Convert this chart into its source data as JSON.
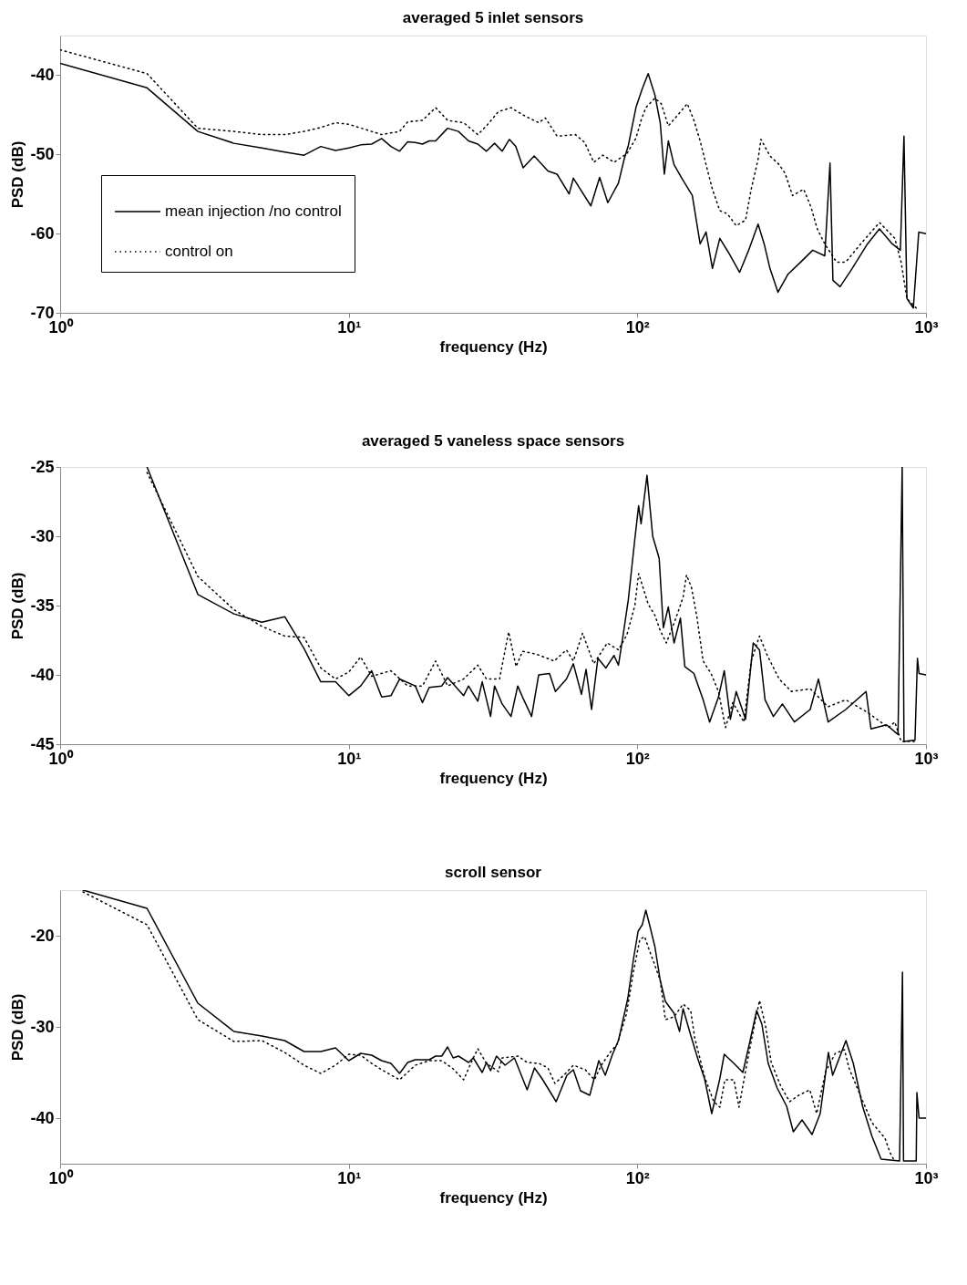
{
  "chart_data": [
    {
      "type": "line",
      "title": "averaged 5 inlet sensors",
      "xlabel": "frequency (Hz)",
      "ylabel": "PSD (dB)",
      "log": "x",
      "xlim": [
        1,
        1000
      ],
      "xticks": [
        {
          "value": 1,
          "label": "10⁰"
        },
        {
          "value": 10,
          "label": "10¹"
        },
        {
          "value": 100,
          "label": "10²"
        },
        {
          "value": 1000,
          "label": "10³"
        }
      ],
      "ylim": [
        -70,
        -35
      ],
      "yticks": [
        -70,
        -60,
        -50,
        -40
      ],
      "grid": false,
      "legend": "bottom left",
      "series": [
        {
          "name": "mean injection /no control",
          "color": "#000000",
          "line_style": "solid",
          "x": [
            1,
            2,
            3,
            4,
            5,
            6,
            7,
            8,
            9,
            10,
            11,
            12,
            13,
            14,
            15,
            16,
            17,
            18,
            19,
            20,
            22,
            24,
            26,
            28,
            30,
            32,
            34,
            36,
            37.9,
            40.2,
            43.9,
            49,
            52.7,
            58,
            60,
            69,
            74,
            79,
            86,
            90,
            93,
            99,
            104,
            109,
            115,
            120,
            124,
            128,
            134,
            143,
            155,
            165,
            173,
            182,
            193,
            207,
            226,
            243,
            262,
            275,
            288,
            307,
            333,
            368,
            405,
            446,
            465,
            476,
            504,
            555,
            627,
            690,
            764,
            815,
            839,
            859,
            904,
            944,
            1000
          ],
          "values": [
            -38.5,
            -41.6,
            -47.1,
            -48.6,
            -49.2,
            -49.7,
            -50.1,
            -49.0,
            -49.5,
            -49.2,
            -48.8,
            -48.7,
            -48.0,
            -49.0,
            -49.6,
            -48.4,
            -48.5,
            -48.7,
            -48.3,
            -48.3,
            -46.7,
            -47.1,
            -48.3,
            -48.7,
            -49.6,
            -48.6,
            -49.6,
            -48.1,
            -49.0,
            -51.7,
            -50.2,
            -52.1,
            -52.5,
            -55.0,
            -53.0,
            -56.5,
            -52.9,
            -56.1,
            -53.6,
            -50.6,
            -48.9,
            -44.0,
            -41.7,
            -39.8,
            -42.5,
            -46.0,
            -52.5,
            -48.3,
            -51.3,
            -53.1,
            -55.2,
            -61.3,
            -59.8,
            -64.4,
            -60.6,
            -62.4,
            -64.9,
            -62.1,
            -58.8,
            -61.3,
            -64.4,
            -67.4,
            -65.1,
            -63.6,
            -62.1,
            -62.8,
            -51.1,
            -65.9,
            -66.7,
            -64.4,
            -61.3,
            -59.4,
            -61.3,
            -62.1,
            -47.7,
            -68.2,
            -69.4,
            -59.8,
            -60.0
          ]
        },
        {
          "name": "control on",
          "color": "#000000",
          "line_style": "dotted",
          "x": [
            1,
            2,
            3,
            4,
            5,
            6,
            7,
            8,
            9,
            10,
            12,
            13,
            15,
            16,
            18,
            20,
            22,
            25,
            28,
            30,
            33,
            36.5,
            40,
            45.5,
            48,
            52.7,
            61,
            65.7,
            70.6,
            76,
            83,
            92,
            99,
            103,
            107,
            115,
            121,
            128,
            136,
            149,
            157,
            165,
            173,
            182,
            193,
            205,
            220,
            237,
            248,
            262,
            268,
            288,
            310,
            325,
            345,
            377,
            400,
            420,
            446,
            490,
            527,
            594,
            690,
            780,
            820,
            859,
            925
          ],
          "values": [
            -36.8,
            -39.8,
            -46.7,
            -47.1,
            -47.5,
            -47.5,
            -47.1,
            -46.6,
            -46.0,
            -46.2,
            -47.1,
            -47.5,
            -47.1,
            -45.9,
            -45.7,
            -44.1,
            -45.7,
            -46.0,
            -47.5,
            -46.4,
            -44.6,
            -44.1,
            -45.0,
            -46.0,
            -45.4,
            -47.7,
            -47.5,
            -48.5,
            -51.0,
            -50.1,
            -51.0,
            -49.9,
            -47.9,
            -45.7,
            -44.1,
            -42.9,
            -43.6,
            -46.4,
            -45.3,
            -43.6,
            -45.7,
            -48.3,
            -51.3,
            -54.4,
            -57.1,
            -57.5,
            -59.0,
            -58.3,
            -54.4,
            -50.6,
            -48.1,
            -50.2,
            -51.3,
            -52.4,
            -55.2,
            -54.4,
            -56.7,
            -59.4,
            -61.3,
            -63.6,
            -63.6,
            -61.3,
            -58.6,
            -60.6,
            -63.6,
            -68.2,
            -69.4
          ]
        }
      ]
    },
    {
      "type": "line",
      "title": "averaged 5 vaneless space sensors",
      "xlabel": "frequency (Hz)",
      "ylabel": "PSD (dB)",
      "log": "x",
      "xlim": [
        1,
        1000
      ],
      "xticks": [
        {
          "value": 1,
          "label": "10⁰"
        },
        {
          "value": 10,
          "label": "10¹"
        },
        {
          "value": 100,
          "label": "10²"
        },
        {
          "value": 1000,
          "label": "10³"
        }
      ],
      "ylim": [
        -45,
        -25
      ],
      "yticks": [
        -45,
        -40,
        -35,
        -30,
        -25
      ],
      "grid": false,
      "series": [
        {
          "color": "#000000",
          "line_style": "solid",
          "x": [
            2,
            3,
            4,
            5,
            6,
            7,
            8,
            9,
            10,
            11,
            12,
            13,
            14,
            15,
            17,
            18,
            19,
            21,
            22,
            25,
            26,
            28,
            29,
            31,
            32,
            34,
            36.5,
            38.5,
            40,
            43,
            45.5,
            49.6,
            52,
            56.8,
            60,
            64,
            66.4,
            69.4,
            73,
            77.8,
            83,
            86,
            89,
            93,
            98,
            101,
            103,
            108,
            113,
            119,
            123,
            128,
            134,
            141,
            146,
            157,
            169,
            178,
            191,
            200,
            210,
            220,
            237,
            252,
            265,
            277,
            296,
            318,
            350,
            397,
            424,
            458,
            527,
            620,
            645,
            730,
            800,
            827,
            839,
            916,
            934,
            946,
            1000
          ],
          "values": [
            -25.0,
            -34.2,
            -35.6,
            -36.2,
            -35.8,
            -38.1,
            -40.5,
            -40.5,
            -41.5,
            -40.8,
            -39.7,
            -41.6,
            -41.5,
            -40.3,
            -40.8,
            -42.0,
            -40.9,
            -40.8,
            -40.2,
            -41.5,
            -40.8,
            -41.9,
            -40.5,
            -43.0,
            -40.8,
            -42.1,
            -43.0,
            -40.8,
            -41.6,
            -43.0,
            -40.0,
            -39.9,
            -41.2,
            -40.3,
            -39.2,
            -41.4,
            -39.6,
            -42.5,
            -38.8,
            -39.5,
            -38.6,
            -39.3,
            -37.3,
            -34.6,
            -30.2,
            -27.8,
            -29.1,
            -25.6,
            -30.0,
            -31.6,
            -36.6,
            -35.1,
            -37.7,
            -35.9,
            -39.4,
            -39.9,
            -41.8,
            -43.4,
            -41.6,
            -39.7,
            -43.2,
            -41.2,
            -43.2,
            -37.7,
            -38.2,
            -41.8,
            -43.0,
            -42.1,
            -43.4,
            -42.5,
            -40.3,
            -43.4,
            -42.5,
            -41.2,
            -43.9,
            -43.6,
            -44.3,
            -25.0,
            -44.8,
            -44.7,
            -38.8,
            -39.9,
            -40.0
          ]
        },
        {
          "color": "#000000",
          "line_style": "dotted",
          "x": [
            2,
            3,
            4,
            5,
            6,
            7,
            8,
            9,
            10,
            11,
            12,
            14,
            16,
            18,
            20,
            22,
            25,
            28,
            30,
            33.3,
            35.8,
            38,
            40,
            44.6,
            51.5,
            56.8,
            60,
            64.6,
            70.6,
            78.6,
            86,
            92,
            98,
            101,
            105,
            109,
            115,
            120,
            126,
            136,
            144,
            148,
            154,
            161,
            169,
            180,
            191,
            202,
            214,
            234,
            248,
            265,
            282,
            310,
            342,
            397,
            458,
            527,
            627,
            740,
            780,
            820,
            916
          ],
          "values": [
            -25.4,
            -32.9,
            -35.3,
            -36.5,
            -37.2,
            -37.3,
            -39.5,
            -40.3,
            -39.8,
            -38.7,
            -40.1,
            -39.7,
            -40.8,
            -40.8,
            -39.0,
            -40.8,
            -40.3,
            -39.3,
            -40.3,
            -40.3,
            -36.9,
            -39.4,
            -38.3,
            -38.5,
            -39.0,
            -38.2,
            -39.0,
            -37.0,
            -39.2,
            -37.7,
            -38.2,
            -37.1,
            -35.0,
            -32.7,
            -33.8,
            -34.9,
            -35.7,
            -36.8,
            -37.7,
            -35.9,
            -34.4,
            -32.8,
            -33.7,
            -35.9,
            -39.0,
            -39.9,
            -41.2,
            -43.8,
            -42.0,
            -43.4,
            -39.0,
            -37.2,
            -38.6,
            -40.3,
            -41.2,
            -41.0,
            -42.3,
            -41.8,
            -42.7,
            -43.8,
            -43.4,
            -44.8,
            -44.8
          ]
        }
      ]
    },
    {
      "type": "line",
      "title": "scroll sensor",
      "xlabel": "frequency (Hz)",
      "ylabel": "PSD (dB)",
      "log": "x",
      "xlim": [
        1,
        1000
      ],
      "xticks": [
        {
          "value": 1,
          "label": "10⁰"
        },
        {
          "value": 10,
          "label": "10¹"
        },
        {
          "value": 100,
          "label": "10²"
        },
        {
          "value": 1000,
          "label": "10³"
        }
      ],
      "ylim": [
        -45,
        -15
      ],
      "yticks": [
        -40,
        -30,
        -20
      ],
      "grid": false,
      "series": [
        {
          "color": "#000000",
          "line_style": "solid",
          "x": [
            1.2,
            2,
            3,
            4,
            5,
            6,
            7,
            8,
            9,
            10,
            11,
            12,
            13,
            14,
            15,
            16,
            17,
            19,
            20,
            21,
            22,
            23,
            24,
            26,
            27,
            29,
            30,
            31,
            32.5,
            34.8,
            37.5,
            41.5,
            44,
            46.8,
            52.3,
            57,
            60,
            63.5,
            68.4,
            73.5,
            77.4,
            82,
            86,
            92.6,
            97,
            100.6,
            104,
            107,
            111,
            115,
            120,
            125,
            134,
            140,
            144,
            153,
            162,
            171,
            181,
            193,
            200,
            216,
            232,
            245,
            259,
            270,
            284,
            305,
            329,
            347,
            372,
            403,
            430,
            459,
            475,
            528,
            560,
            603,
            650,
            699,
            810,
            829,
            836,
            925,
            930,
            946,
            1000
          ],
          "values": [
            -15.0,
            -17.0,
            -27.4,
            -30.5,
            -31.0,
            -31.5,
            -32.7,
            -32.7,
            -32.3,
            -33.7,
            -32.9,
            -33.1,
            -33.7,
            -34.0,
            -35.1,
            -33.9,
            -33.6,
            -33.6,
            -33.2,
            -33.2,
            -32.2,
            -33.4,
            -33.2,
            -33.9,
            -33.4,
            -35.0,
            -33.9,
            -34.8,
            -33.2,
            -34.2,
            -33.4,
            -36.9,
            -34.5,
            -35.7,
            -38.2,
            -35.3,
            -34.7,
            -37.0,
            -37.5,
            -33.7,
            -35.3,
            -33.0,
            -31.5,
            -26.9,
            -22.5,
            -19.5,
            -18.8,
            -17.2,
            -19.2,
            -21.2,
            -24.9,
            -27.2,
            -28.5,
            -30.5,
            -28.0,
            -30.9,
            -33.5,
            -35.7,
            -39.5,
            -35.7,
            -33.0,
            -34.0,
            -35.0,
            -31.7,
            -28.2,
            -29.7,
            -34.0,
            -36.7,
            -38.7,
            -41.5,
            -40.2,
            -41.8,
            -39.5,
            -32.8,
            -35.3,
            -31.5,
            -34.0,
            -38.7,
            -42.0,
            -44.5,
            -44.7,
            -24.0,
            -44.7,
            -44.7,
            -37.2,
            -40.0,
            -40.0
          ]
        },
        {
          "color": "#000000",
          "line_style": "dotted",
          "x": [
            1.2,
            2,
            3,
            4,
            5,
            6,
            7,
            8,
            9,
            10,
            11,
            12,
            13,
            15,
            17,
            19,
            21,
            23,
            25,
            27,
            28,
            30,
            33,
            34,
            38.6,
            41.5,
            45.6,
            49,
            51.8,
            56,
            60,
            66,
            71,
            75,
            80,
            85,
            91.6,
            97,
            102,
            106,
            110,
            114,
            120,
            125,
            134,
            144,
            153,
            158,
            171,
            184,
            193,
            201,
            216,
            225,
            239,
            254,
            265,
            278,
            291,
            314,
            337,
            362,
            396,
            418,
            449,
            485,
            522,
            541,
            592,
            650,
            721,
            751,
            778
          ],
          "values": [
            -15.2,
            -18.8,
            -29.2,
            -31.6,
            -31.5,
            -32.8,
            -34.2,
            -35.1,
            -34.2,
            -33.0,
            -33.1,
            -34.0,
            -34.7,
            -35.8,
            -34.2,
            -33.7,
            -33.7,
            -34.6,
            -35.8,
            -33.4,
            -32.4,
            -34.0,
            -34.9,
            -33.4,
            -33.2,
            -33.9,
            -34.0,
            -34.5,
            -36.2,
            -35.2,
            -34.2,
            -34.7,
            -35.8,
            -34.2,
            -32.9,
            -31.9,
            -28.6,
            -23.9,
            -20.4,
            -20.1,
            -21.6,
            -22.9,
            -24.9,
            -29.2,
            -28.9,
            -27.5,
            -28.2,
            -31.2,
            -35.5,
            -38.2,
            -38.8,
            -35.8,
            -35.8,
            -38.8,
            -34.2,
            -29.9,
            -27.1,
            -29.9,
            -33.9,
            -36.5,
            -38.2,
            -37.5,
            -36.9,
            -39.5,
            -34.9,
            -32.9,
            -32.5,
            -34.5,
            -37.5,
            -40.5,
            -42.2,
            -43.8,
            -44.7
          ]
        }
      ]
    }
  ]
}
